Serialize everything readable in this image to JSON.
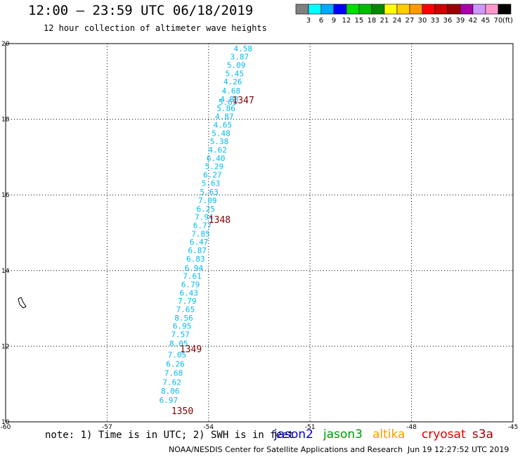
{
  "header": {
    "title": "12:00 – 23:59 UTC 06/18/2019",
    "subtitle": "12 hour collection of altimeter wave heights"
  },
  "colorbar": {
    "labels": [
      "3",
      "6",
      "9",
      "12",
      "15",
      "18",
      "21",
      "24",
      "27",
      "30",
      "33",
      "36",
      "39",
      "42",
      "45",
      "70"
    ],
    "unit": "(ft)",
    "colors": [
      "#808080",
      "#00ffff",
      "#00aaff",
      "#0000ff",
      "#00dd00",
      "#00bb00",
      "#008800",
      "#ffff00",
      "#ffcc00",
      "#ff9900",
      "#ff0000",
      "#cc0000",
      "#990000",
      "#aa00aa",
      "#cc99ff",
      "#ff99cc",
      "#000000"
    ]
  },
  "footer": {
    "note": "note: 1) Time is in UTC; 2) SWH is in feet",
    "credit": "NOAA/NESDIS Center for Satellite Applications and Research",
    "timestamp": "Jun 19 12:27:52 UTC 2019",
    "satellites": [
      {
        "name": "jason2",
        "color": "#0000cc"
      },
      {
        "name": "jason3",
        "color": "#009900"
      },
      {
        "name": "altika",
        "color": "#ff9900"
      },
      {
        "name": "cryosat",
        "color": "#dd0000"
      },
      {
        "name": "s3a",
        "color": "#990000"
      }
    ]
  },
  "chart_data": {
    "type": "scatter",
    "title": "12:00 – 23:59 UTC 06/18/2019",
    "xlim": [
      -60,
      -45
    ],
    "ylim": [
      10,
      20
    ],
    "x_ticks": [
      -60,
      -57,
      -54,
      -51,
      -48,
      -45
    ],
    "y_ticks": [
      10,
      12,
      14,
      16,
      18,
      20
    ],
    "grid": true,
    "series": [
      {
        "name": "jason3",
        "color": "#00bbee",
        "points": [
          {
            "lon": -53.3,
            "lat": 19.8,
            "swh": "4.58"
          },
          {
            "lon": -53.4,
            "lat": 19.58,
            "swh": "3.87"
          },
          {
            "lon": -53.5,
            "lat": 19.36,
            "swh": "5.09"
          },
          {
            "lon": -53.55,
            "lat": 19.14,
            "swh": "5.45"
          },
          {
            "lon": -53.6,
            "lat": 18.92,
            "swh": "4.26"
          },
          {
            "lon": -53.65,
            "lat": 18.68,
            "swh": "4.68"
          },
          {
            "lon": -53.7,
            "lat": 18.46,
            "swh": "4.83"
          },
          {
            "lon": -53.75,
            "lat": 18.38,
            "swh": "5.65"
          },
          {
            "lon": -53.8,
            "lat": 18.22,
            "swh": "5.86"
          },
          {
            "lon": -53.85,
            "lat": 18.0,
            "swh": "4.87"
          },
          {
            "lon": -53.9,
            "lat": 17.78,
            "swh": "4.65"
          },
          {
            "lon": -53.95,
            "lat": 17.56,
            "swh": "5.48"
          },
          {
            "lon": -54.0,
            "lat": 17.34,
            "swh": "5.38"
          },
          {
            "lon": -54.05,
            "lat": 17.12,
            "swh": "4.62"
          },
          {
            "lon": -54.1,
            "lat": 16.9,
            "swh": "6.40"
          },
          {
            "lon": -54.15,
            "lat": 16.68,
            "swh": "5.29"
          },
          {
            "lon": -54.2,
            "lat": 16.46,
            "swh": "6.27"
          },
          {
            "lon": -54.25,
            "lat": 16.24,
            "swh": "5.63"
          },
          {
            "lon": -54.3,
            "lat": 16.0,
            "swh": "5.63"
          },
          {
            "lon": -54.35,
            "lat": 15.78,
            "swh": "7.09"
          },
          {
            "lon": -54.4,
            "lat": 15.56,
            "swh": "6.25"
          },
          {
            "lon": -54.45,
            "lat": 15.34,
            "swh": "7.94"
          },
          {
            "lon": -54.5,
            "lat": 15.12,
            "swh": "6.77"
          },
          {
            "lon": -54.55,
            "lat": 14.9,
            "swh": "7.85"
          },
          {
            "lon": -54.6,
            "lat": 14.68,
            "swh": "6.47"
          },
          {
            "lon": -54.65,
            "lat": 14.46,
            "swh": "6.87"
          },
          {
            "lon": -54.7,
            "lat": 14.24,
            "swh": "6.83"
          },
          {
            "lon": -54.75,
            "lat": 14.0,
            "swh": "6.94"
          },
          {
            "lon": -54.8,
            "lat": 13.78,
            "swh": "7.61"
          },
          {
            "lon": -54.85,
            "lat": 13.56,
            "swh": "6.79"
          },
          {
            "lon": -54.9,
            "lat": 13.34,
            "swh": "6.43"
          },
          {
            "lon": -54.95,
            "lat": 13.12,
            "swh": "7.79"
          },
          {
            "lon": -55.0,
            "lat": 12.9,
            "swh": "7.65"
          },
          {
            "lon": -55.05,
            "lat": 12.68,
            "swh": "8.56"
          },
          {
            "lon": -55.1,
            "lat": 12.46,
            "swh": "6.95"
          },
          {
            "lon": -55.15,
            "lat": 12.24,
            "swh": "7.57"
          },
          {
            "lon": -55.2,
            "lat": 12.0,
            "swh": "8.05"
          },
          {
            "lon": -55.25,
            "lat": 11.7,
            "swh": "7.05"
          },
          {
            "lon": -55.3,
            "lat": 11.46,
            "swh": "6.26"
          },
          {
            "lon": -55.35,
            "lat": 11.22,
            "swh": "7.68"
          },
          {
            "lon": -55.4,
            "lat": 10.98,
            "swh": "7.62"
          },
          {
            "lon": -55.45,
            "lat": 10.74,
            "swh": "8.06"
          },
          {
            "lon": -55.5,
            "lat": 10.5,
            "swh": "6.97"
          }
        ]
      }
    ],
    "time_labels": [
      {
        "text": "1347",
        "lon": -53.3,
        "lat": 18.42,
        "color": "#800000"
      },
      {
        "text": "1348",
        "lon": -54.0,
        "lat": 15.26,
        "color": "#800000"
      },
      {
        "text": "1349",
        "lon": -54.85,
        "lat": 11.84,
        "color": "#800000"
      },
      {
        "text": "1350",
        "lon": -55.1,
        "lat": 10.2,
        "color": "#800000"
      }
    ]
  }
}
